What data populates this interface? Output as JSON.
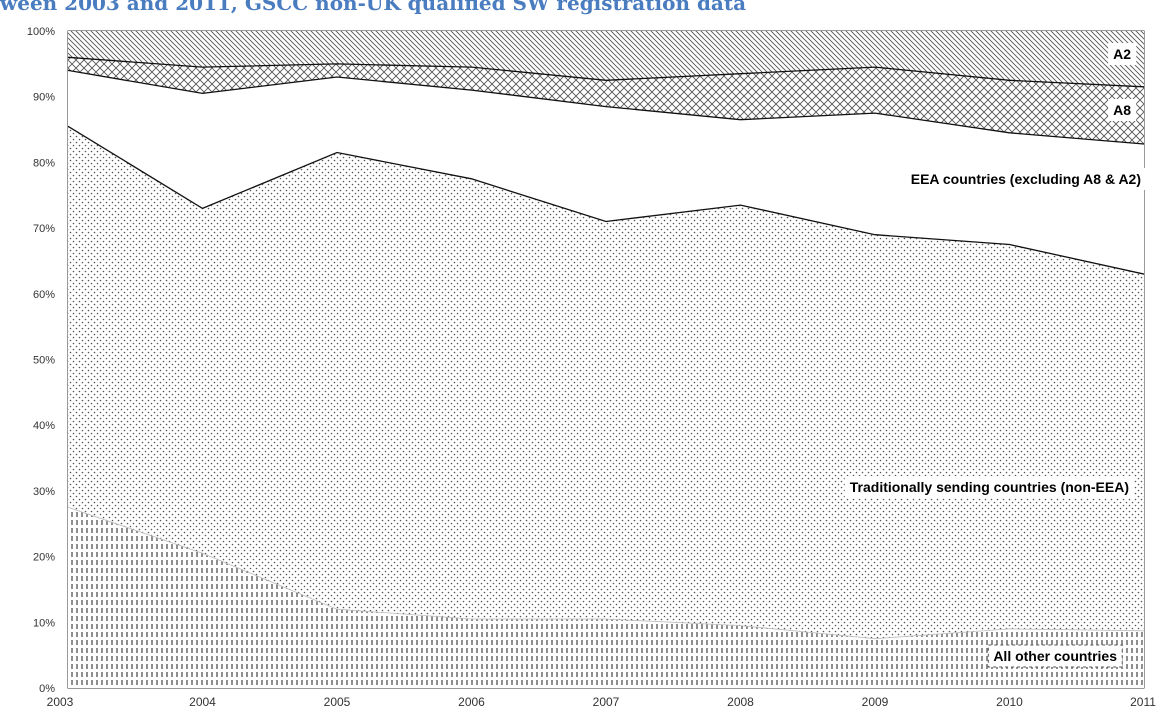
{
  "title": "ween 2003 and 2011, GSCC non-UK qualified SW registration data",
  "chart_data": {
    "type": "area",
    "stacked": true,
    "x": [
      "2003",
      "2004",
      "2005",
      "2006",
      "2007",
      "2008",
      "2009",
      "2010",
      "2011"
    ],
    "y_ticks": [
      "0%",
      "10%",
      "20%",
      "30%",
      "40%",
      "50%",
      "60%",
      "70%",
      "80%",
      "90%",
      "100%"
    ],
    "ylim": [
      0,
      100
    ],
    "grid": false,
    "series": [
      {
        "name": "All other countries",
        "values": [
          27.5,
          20.5,
          12.0,
          10.5,
          10.5,
          9.5,
          7.5,
          9.0,
          8.7
        ]
      },
      {
        "name": "Traditionally sending countries (non-EEA)",
        "values": [
          58.0,
          52.5,
          69.5,
          67.0,
          60.5,
          64.0,
          61.5,
          58.5,
          54.3
        ]
      },
      {
        "name": "EEA countries (excluding A8 & A2)",
        "values": [
          8.5,
          17.5,
          11.5,
          13.5,
          17.5,
          13.0,
          18.5,
          17.0,
          19.8
        ]
      },
      {
        "name": "A8",
        "values": [
          2.0,
          4.0,
          2.0,
          3.5,
          4.0,
          7.0,
          7.0,
          8.0,
          8.7
        ]
      },
      {
        "name": "A2",
        "values": [
          4.0,
          5.5,
          5.0,
          5.5,
          7.5,
          6.5,
          5.5,
          7.5,
          8.5
        ]
      }
    ]
  }
}
